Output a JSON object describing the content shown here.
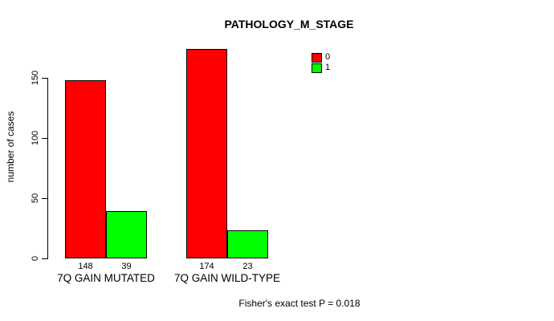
{
  "chart_data": {
    "type": "bar",
    "title": "PATHOLOGY_M_STAGE",
    "xlabel": "",
    "ylabel": "number of cases",
    "categories": [
      "7Q GAIN MUTATED",
      "7Q GAIN WILD-TYPE"
    ],
    "series": [
      {
        "name": "0",
        "color": "#ff0000",
        "values": [
          148,
          174
        ]
      },
      {
        "name": "1",
        "color": "#00ff00",
        "values": [
          39,
          23
        ]
      }
    ],
    "y_ticks": [
      0,
      50,
      100,
      150
    ],
    "ylim": [
      0,
      175
    ],
    "grid": false,
    "legend_position": "top-right",
    "bar_border_color": "#000000",
    "background_color": "#ffffff"
  },
  "footer": {
    "text": "Fisher's exact test P = 0.018"
  }
}
